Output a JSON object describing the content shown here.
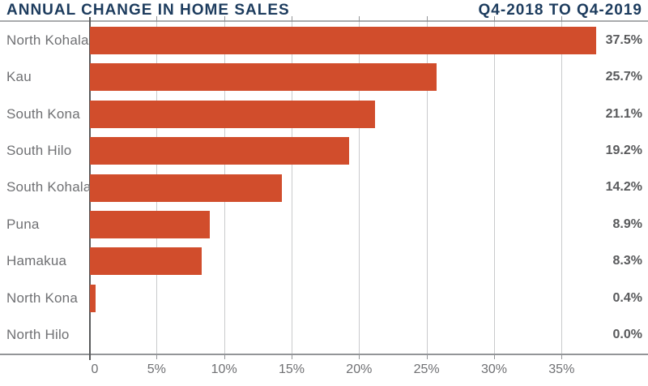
{
  "header": {
    "title": "ANNUAL CHANGE IN HOME SALES",
    "period": "Q4-2018 TO Q4-2019"
  },
  "chart_data": {
    "type": "bar",
    "orientation": "horizontal",
    "title": "ANNUAL CHANGE IN HOME SALES",
    "subtitle": "Q4-2018 TO Q4-2019",
    "categories": [
      "North Kohala",
      "Kau",
      "South Kona",
      "South Hilo",
      "South Kohala",
      "Puna",
      "Hamakua",
      "North Kona",
      "North Hilo"
    ],
    "values": [
      37.5,
      25.7,
      21.1,
      19.2,
      14.2,
      8.9,
      8.3,
      0.4,
      0.0
    ],
    "value_labels": [
      "37.5%",
      "25.7%",
      "21.1%",
      "19.2%",
      "14.2%",
      "8.9%",
      "8.3%",
      "0.4%",
      "0.0%"
    ],
    "xlabel": "",
    "ylabel": "",
    "x_ticks": [
      {
        "value": 0,
        "label": "0"
      },
      {
        "value": 5,
        "label": "5%"
      },
      {
        "value": 10,
        "label": "10%"
      },
      {
        "value": 15,
        "label": "15%"
      },
      {
        "value": 20,
        "label": "20%"
      },
      {
        "value": 25,
        "label": "25%"
      },
      {
        "value": 30,
        "label": "30%"
      },
      {
        "value": 35,
        "label": "35%"
      }
    ],
    "xlim": [
      0,
      41.4
    ],
    "grid": true,
    "legend": false,
    "colors": {
      "bar": "#d14d2c",
      "title": "#1d3c5e",
      "category_label": "#6f7073",
      "value_label": "#58595b",
      "tick_label": "#6f7073",
      "gridline": "#c9cacc",
      "top_rule": "#a9abad",
      "bottom_rule": "#939598",
      "axis_line": "#58595b",
      "tick_mark": "#939598",
      "background": "#ffffff"
    }
  }
}
